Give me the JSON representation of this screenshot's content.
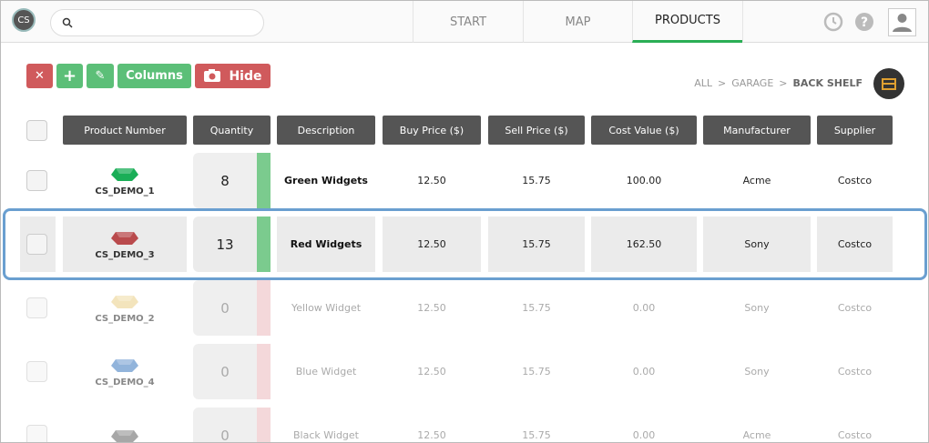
{
  "logo": "CS",
  "nav": [
    "START",
    "MAP",
    "PRODUCTS"
  ],
  "active_tab": 2,
  "toolbar": {
    "columns": "Columns",
    "hide": "Hide"
  },
  "breadcrumb": {
    "items": [
      "ALL",
      "GARAGE",
      "BACK SHELF"
    ],
    "separator": ">"
  },
  "table": {
    "headers": [
      "Product Number",
      "Quantity",
      "Description",
      "Buy Price ($)",
      "Sell Price ($)",
      "Cost Value ($)",
      "Manufacturer",
      "Supplier"
    ],
    "selected_row": 1,
    "rows": [
      {
        "product": "CS_DEMO_1",
        "gem": "#1aae57",
        "quantity": 8,
        "description": "Green Widgets",
        "buy": "12.50",
        "sell": "15.75",
        "cost": "100.00",
        "manufacturer": "Acme",
        "supplier": "Costco"
      },
      {
        "product": "CS_DEMO_3",
        "gem": "#b94a4c",
        "quantity": 13,
        "description": "Red Widgets",
        "buy": "12.50",
        "sell": "15.75",
        "cost": "162.50",
        "manufacturer": "Sony",
        "supplier": "Costco"
      },
      {
        "product": "CS_DEMO_2",
        "gem": "#efdca6",
        "quantity": 0,
        "description": "Yellow Widget",
        "buy": "12.50",
        "sell": "15.75",
        "cost": "0.00",
        "manufacturer": "Sony",
        "supplier": "Costco"
      },
      {
        "product": "CS_DEMO_4",
        "gem": "#6e9bd0",
        "quantity": 0,
        "description": "Blue Widget",
        "buy": "12.50",
        "sell": "15.75",
        "cost": "0.00",
        "manufacturer": "Sony",
        "supplier": "Costco"
      },
      {
        "gem": "#8a8a8a",
        "quantity": 0,
        "description": "Black Widget",
        "buy": "12.50",
        "sell": "15.75",
        "cost": "0.00",
        "manufacturer": "Acme",
        "supplier": "Costco"
      }
    ]
  }
}
